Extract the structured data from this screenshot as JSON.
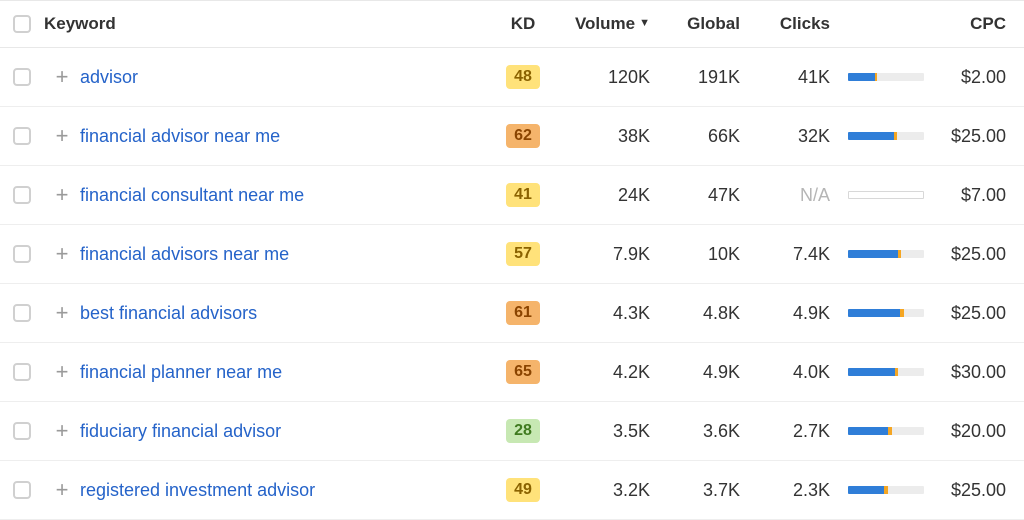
{
  "colors": {
    "link": "#2563c9",
    "text": "#333333",
    "muted": "#b5b5b5",
    "border": "#eeeeee",
    "bar_track": "#ececec",
    "bar_blue": "#2f7ed8",
    "bar_orange": "#f5a623",
    "kd_green_bg": "#c7e8b3",
    "kd_green_fg": "#3f7a1f",
    "kd_yellow_bg": "#ffe27a",
    "kd_yellow_fg": "#8a6200",
    "kd_orange_bg": "#f5b46b",
    "kd_orange_fg": "#8a4400"
  },
  "header": {
    "keyword": "Keyword",
    "kd": "KD",
    "volume": "Volume",
    "global": "Global",
    "clicks": "Clicks",
    "cpc": "CPC",
    "sorted_column": "volume",
    "sort_direction": "desc"
  },
  "rows": [
    {
      "keyword": "advisor",
      "kd": 48,
      "kd_tier": "yellow",
      "volume": "120K",
      "global": "191K",
      "clicks": "41K",
      "bar": {
        "blue_pct": 36,
        "orange_pct": 2,
        "empty": false
      },
      "cpc": "$2.00"
    },
    {
      "keyword": "financial advisor near me",
      "kd": 62,
      "kd_tier": "orange",
      "volume": "38K",
      "global": "66K",
      "clicks": "32K",
      "bar": {
        "blue_pct": 60,
        "orange_pct": 4,
        "empty": false
      },
      "cpc": "$25.00"
    },
    {
      "keyword": "financial consultant near me",
      "kd": 41,
      "kd_tier": "yellow",
      "volume": "24K",
      "global": "47K",
      "clicks": "N/A",
      "bar": {
        "blue_pct": 0,
        "orange_pct": 0,
        "empty": true
      },
      "cpc": "$7.00"
    },
    {
      "keyword": "financial advisors near me",
      "kd": 57,
      "kd_tier": "yellow",
      "volume": "7.9K",
      "global": "10K",
      "clicks": "7.4K",
      "bar": {
        "blue_pct": 66,
        "orange_pct": 4,
        "empty": false
      },
      "cpc": "$25.00"
    },
    {
      "keyword": "best financial advisors",
      "kd": 61,
      "kd_tier": "orange",
      "volume": "4.3K",
      "global": "4.8K",
      "clicks": "4.9K",
      "bar": {
        "blue_pct": 68,
        "orange_pct": 6,
        "empty": false
      },
      "cpc": "$25.00"
    },
    {
      "keyword": "financial planner near me",
      "kd": 65,
      "kd_tier": "orange",
      "volume": "4.2K",
      "global": "4.9K",
      "clicks": "4.0K",
      "bar": {
        "blue_pct": 62,
        "orange_pct": 4,
        "empty": false
      },
      "cpc": "$30.00"
    },
    {
      "keyword": "fiduciary financial advisor",
      "kd": 28,
      "kd_tier": "green",
      "volume": "3.5K",
      "global": "3.6K",
      "clicks": "2.7K",
      "bar": {
        "blue_pct": 52,
        "orange_pct": 6,
        "empty": false
      },
      "cpc": "$20.00"
    },
    {
      "keyword": "registered investment advisor",
      "kd": 49,
      "kd_tier": "yellow",
      "volume": "3.2K",
      "global": "3.7K",
      "clicks": "2.3K",
      "bar": {
        "blue_pct": 48,
        "orange_pct": 4,
        "empty": false
      },
      "cpc": "$25.00"
    }
  ]
}
